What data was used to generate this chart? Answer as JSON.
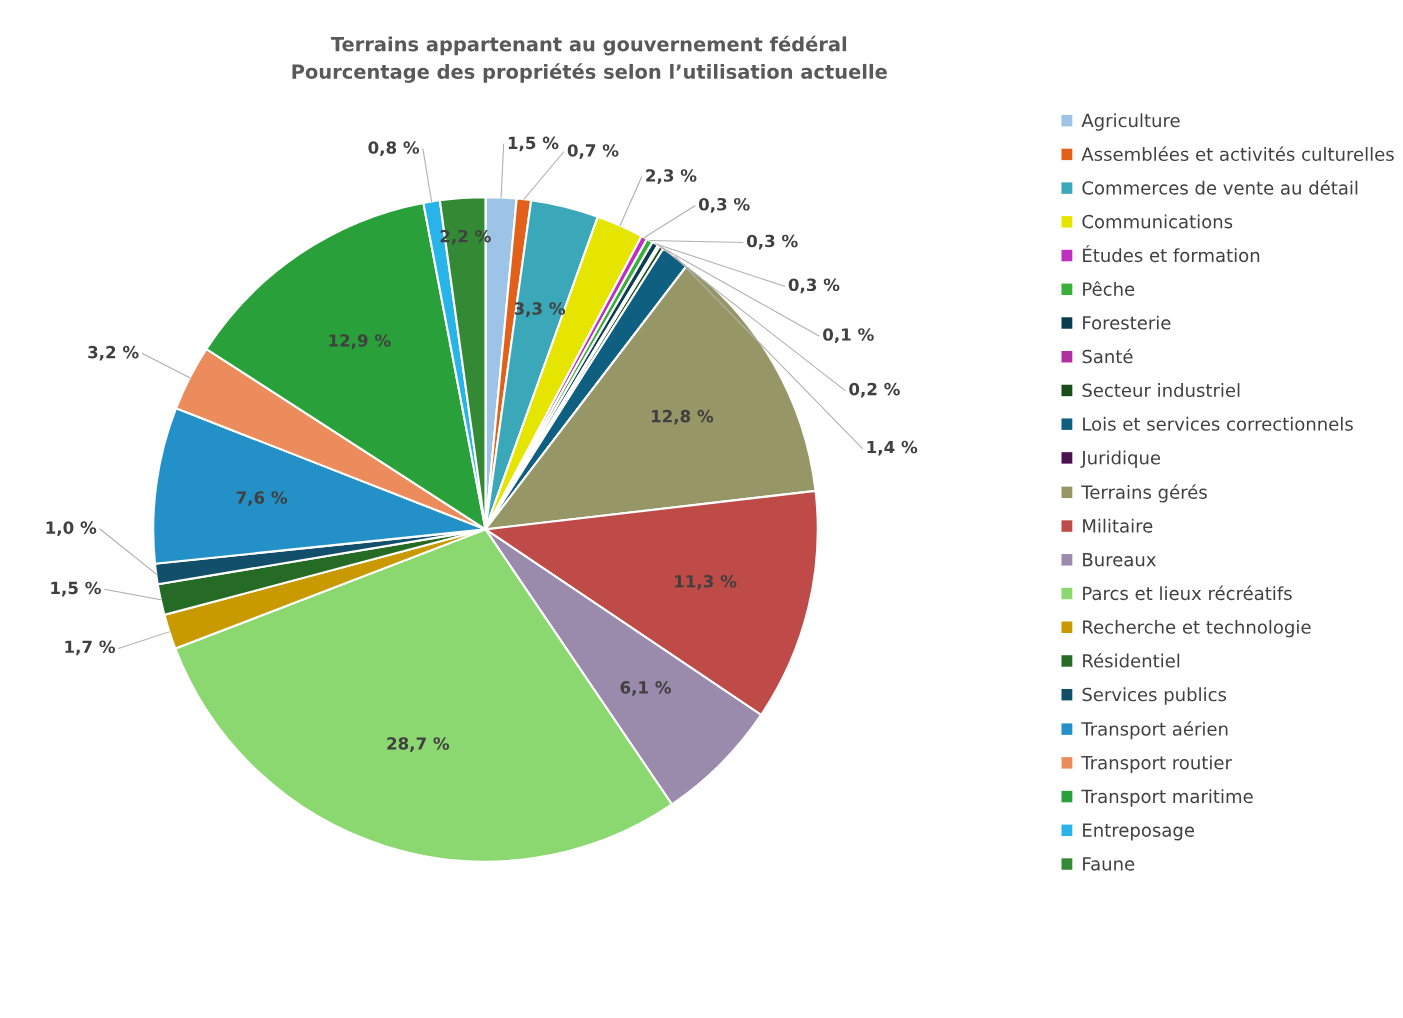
{
  "chart_data": {
    "type": "pie",
    "title": "Terrains appartenant au gouvernement fédéral\nPourcentage des propriétés selon l’utilisation actuelle",
    "categories": [
      "Agriculture",
      "Assemblées et activités culturelles",
      "Commerces de vente au détail",
      "Communications",
      "Études et formation",
      "Pêche",
      "Foresterie",
      "Santé",
      "Secteur industriel",
      "Lois et services correctionnels",
      "Juridique",
      "Terrains gérés",
      "Militaire",
      "Bureaux",
      "Parcs et lieux récréatifs",
      "Recherche et technologie",
      "Résidentiel",
      "Services publics",
      "Transport aérien",
      "Transport routier",
      "Transport maritime",
      "Entreposage",
      "Faune"
    ],
    "values": [
      1.5,
      0.7,
      3.3,
      2.3,
      0.3,
      0.3,
      0.3,
      0.1,
      0.2,
      1.4,
      0,
      12.8,
      11.3,
      6.1,
      28.7,
      1.7,
      1.5,
      1.0,
      7.6,
      3.2,
      12.9,
      0.8,
      2.2
    ],
    "value_labels": [
      "1,5 %",
      "0,7 %",
      "3,3 %",
      "2,3 %",
      "0,3 %",
      "0,3 %",
      "0,3 %",
      "0,1 %",
      "0,2 %",
      "1,4 %",
      null,
      "12,8 %",
      "11,3 %",
      "6,1 %",
      "28,7 %",
      "1,7 %",
      "1,5 %",
      "1,0 %",
      "7,6 %",
      "3,2 %",
      "12,9 %",
      "0,8 %",
      "2,2 %"
    ],
    "colors": [
      "#9dc3e6",
      "#e2601a",
      "#3aa8b8",
      "#e5e500",
      "#c030c0",
      "#3ab03a",
      "#0b3d50",
      "#b030a0",
      "#1a4d1a",
      "#0e5f80",
      "#4a1050",
      "#969666",
      "#be4b48",
      "#9a8aac",
      "#8cd870",
      "#c89a00",
      "#256b25",
      "#114f6a",
      "#2490c8",
      "#ec8c5c",
      "#2aa03a",
      "#28b4e8",
      "#348a34"
    ],
    "legend": "right"
  }
}
